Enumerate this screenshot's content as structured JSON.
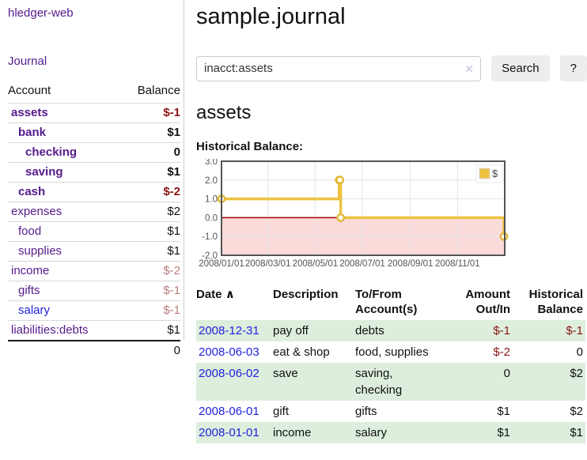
{
  "app": {
    "brand": "hledger-web",
    "nav_journal": "Journal"
  },
  "header": {
    "title": "sample.journal"
  },
  "search": {
    "value": "inacct:assets",
    "clear_icon": "✕",
    "button": "Search",
    "help": "?"
  },
  "account_page": {
    "heading": "assets",
    "chart_label": "Historical Balance:"
  },
  "sidebar": {
    "col_account": "Account",
    "col_balance": "Balance",
    "accounts": [
      {
        "name": "assets",
        "depth": 0,
        "bold": true,
        "balance": "$-1",
        "neg": "strong"
      },
      {
        "name": "bank",
        "depth": 1,
        "bold": true,
        "balance": "$1"
      },
      {
        "name": "checking",
        "depth": 2,
        "bold": true,
        "balance": "0"
      },
      {
        "name": "saving",
        "depth": 2,
        "bold": true,
        "balance": "$1"
      },
      {
        "name": "cash",
        "depth": 1,
        "bold": true,
        "balance": "$-2",
        "neg": "strong"
      },
      {
        "name": "expenses",
        "depth": 0,
        "bold": false,
        "balance": "$2"
      },
      {
        "name": "food",
        "depth": 1,
        "bold": false,
        "balance": "$1"
      },
      {
        "name": "supplies",
        "depth": 1,
        "bold": false,
        "balance": "$1"
      },
      {
        "name": "income",
        "depth": 0,
        "bold": false,
        "balance": "$-2",
        "neg": "soft"
      },
      {
        "name": "gifts",
        "depth": 1,
        "bold": false,
        "balance": "$-1",
        "neg": "soft"
      },
      {
        "name": "salary",
        "depth": 1,
        "bold": false,
        "balance": "$-1",
        "neg": "soft",
        "link": "blue"
      },
      {
        "name": "liabilities:debts",
        "depth": 0,
        "bold": false,
        "balance": "$1"
      }
    ],
    "total": "0"
  },
  "register": {
    "sort_icon": "∧",
    "columns": {
      "date": "Date",
      "description": "Description",
      "tofrom_line1": "To/From",
      "tofrom_line2": "Account(s)",
      "amount_line1": "Amount",
      "amount_line2": "Out/In",
      "balance_line1": "Historical",
      "balance_line2": "Balance"
    },
    "rows": [
      {
        "date": "2008-12-31",
        "description": "pay off",
        "accounts": "debts",
        "amount": "$-1",
        "balance": "$-1"
      },
      {
        "date": "2008-06-03",
        "description": "eat & shop",
        "accounts": "food, supplies",
        "amount": "$-2",
        "balance": "0"
      },
      {
        "date": "2008-06-02",
        "description": "save",
        "accounts": "saving, checking",
        "amount": "0",
        "balance": "$2"
      },
      {
        "date": "2008-06-01",
        "description": "gift",
        "accounts": "gifts",
        "amount": "$1",
        "balance": "$2"
      },
      {
        "date": "2008-01-01",
        "description": "income",
        "accounts": "salary",
        "amount": "$1",
        "balance": "$1"
      }
    ]
  },
  "chart_data": {
    "type": "line",
    "title": "Historical Balance",
    "step": true,
    "x_range": [
      "2008-01-01",
      "2009-01-01"
    ],
    "ylim": [
      -2,
      3
    ],
    "y_ticks": [
      "3.0",
      "2.0",
      "1.0",
      "0.0",
      "-1.0",
      "-2.0"
    ],
    "x_ticks": [
      {
        "date": "2008-01-01",
        "label": "2008/01/01"
      },
      {
        "date": "2008-03-01",
        "label": "2008/03/01"
      },
      {
        "date": "2008-05-01",
        "label": "2008/05/01"
      },
      {
        "date": "2008-07-01",
        "label": "2008/07/01"
      },
      {
        "date": "2008-09-01",
        "label": "2008/09/01"
      },
      {
        "date": "2008-11-01",
        "label": "2008/11/01"
      }
    ],
    "series": [
      {
        "name": "$",
        "color": "#edc240",
        "points": [
          [
            "2008-01-01",
            1
          ],
          [
            "2008-06-01",
            2
          ],
          [
            "2008-06-02",
            2
          ],
          [
            "2008-06-03",
            0
          ],
          [
            "2008-12-31",
            -1
          ]
        ]
      }
    ],
    "legend": {
      "label": "$",
      "position": "top-right"
    },
    "grid": true,
    "grid_color": "#e5e5e5",
    "zero_line_color": "#a40000",
    "negative_region_color": "#fbdada",
    "plot_border_color": "#545454",
    "axis_text_color": "#545454",
    "marker_fill": "#fffdf5",
    "marker_stroke": "#e2b737"
  },
  "colors": {
    "link_purple": "#551a8b",
    "link_blue": "#2222dd",
    "negative_strong": "#8b1414",
    "negative_soft": "#b87c7c",
    "row_stripe_green": "#ddeedd"
  }
}
